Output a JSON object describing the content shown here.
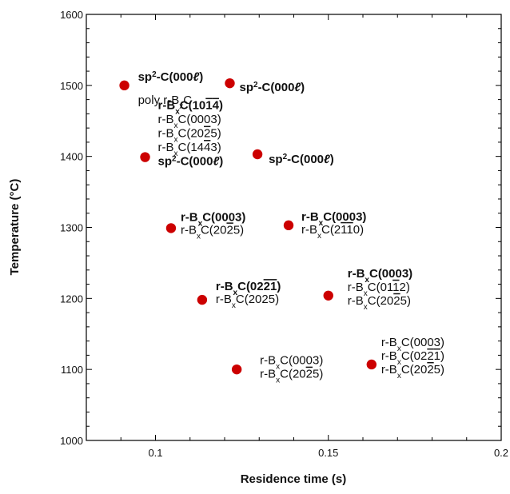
{
  "chart_data": {
    "type": "scatter",
    "xlabel": "Residence time (s)",
    "ylabel": "Temperature (°C)",
    "xlim": [
      0.08,
      0.2
    ],
    "ylim": [
      1000,
      1600
    ],
    "x_tick_labels": [
      {
        "value": 0.1,
        "label": "0.1"
      },
      {
        "value": 0.15,
        "label": "0.15"
      },
      {
        "value": 0.2,
        "label": "0.2"
      }
    ],
    "y_tick_labels": [
      {
        "value": 1000,
        "label": "1000"
      },
      {
        "value": 1100,
        "label": "1100"
      },
      {
        "value": 1200,
        "label": "1200"
      },
      {
        "value": 1300,
        "label": "1300"
      },
      {
        "value": 1400,
        "label": "1400"
      },
      {
        "value": 1500,
        "label": "1500"
      },
      {
        "value": 1600,
        "label": "1600"
      }
    ],
    "marker_color": "#cc0000",
    "points": [
      {
        "x": 0.091,
        "y": 1500,
        "labels": [
          {
            "html": "sp<tspan baseline-shift=\"super\" font-size=\"10\">2</tspan>-C(000<tspan font-style=\"italic\">ℓ</tspan>)",
            "bold": true
          },
          {
            "html": "poly r-B<tspan baseline-shift=\"sub\" font-size=\"10\">x</tspan>C",
            "bold": false
          }
        ]
      },
      {
        "x": 0.1215,
        "y": 1503,
        "labels": [
          {
            "html": "sp<tspan baseline-shift=\"super\" font-size=\"10\">2</tspan>-C(000<tspan font-style=\"italic\">ℓ</tspan>)",
            "bold": true
          }
        ]
      },
      {
        "x": 0.097,
        "y": 1399,
        "labels": [
          {
            "html": "r-B<tspan baseline-shift=\"sub\" font-size=\"10\">x</tspan>C(10<tspan text-decoration=\"overline\">1</tspan><tspan text-decoration=\"overline\">4</tspan>)",
            "bold": true
          },
          {
            "html": "r-B<tspan baseline-shift=\"sub\" font-size=\"10\">x</tspan>C(0003)",
            "bold": false
          },
          {
            "html": "r-B<tspan baseline-shift=\"sub\" font-size=\"10\">x</tspan>C(20<tspan text-decoration=\"overline\">2</tspan>5)",
            "bold": false
          },
          {
            "html": "r-B<tspan baseline-shift=\"sub\" font-size=\"10\">x</tspan>C(14<tspan text-decoration=\"overline\">4</tspan>3)",
            "bold": false
          },
          {
            "html": "sp<tspan baseline-shift=\"super\" font-size=\"10\">2</tspan>-C(000<tspan font-style=\"italic\">ℓ</tspan>)",
            "bold": true
          }
        ]
      },
      {
        "x": 0.1295,
        "y": 1403,
        "labels": [
          {
            "html": "sp<tspan baseline-shift=\"super\" font-size=\"10\">2</tspan>-C(000<tspan font-style=\"italic\">ℓ</tspan>)",
            "bold": true
          }
        ]
      },
      {
        "x": 0.1045,
        "y": 1299,
        "labels": [
          {
            "html": "r-B<tspan baseline-shift=\"sub\" font-size=\"10\">x</tspan>C(0003)",
            "bold": true
          },
          {
            "html": "r-B<tspan baseline-shift=\"sub\" font-size=\"10\">x</tspan>C(20<tspan text-decoration=\"overline\">2</tspan>5)",
            "bold": false
          }
        ]
      },
      {
        "x": 0.1385,
        "y": 1303,
        "labels": [
          {
            "html": "r-B<tspan baseline-shift=\"sub\" font-size=\"10\">x</tspan>C(0003)",
            "bold": true
          },
          {
            "html": "r-B<tspan baseline-shift=\"sub\" font-size=\"10\">x</tspan>C(2<tspan text-decoration=\"overline\">1</tspan><tspan text-decoration=\"overline\">1</tspan>0)",
            "bold": false
          }
        ]
      },
      {
        "x": 0.1135,
        "y": 1198,
        "labels": [
          {
            "html": "r-B<tspan baseline-shift=\"sub\" font-size=\"10\">x</tspan>C(02<tspan text-decoration=\"overline\">2</tspan><tspan text-decoration=\"overline\">1</tspan>)",
            "bold": true
          },
          {
            "html": "r-B<tspan baseline-shift=\"sub\" font-size=\"10\">x</tspan>C(2025)",
            "bold": false
          }
        ]
      },
      {
        "x": 0.15,
        "y": 1204,
        "labels": [
          {
            "html": "r-B<tspan baseline-shift=\"sub\" font-size=\"10\">x</tspan>C(0003)",
            "bold": true
          },
          {
            "html": "r-B<tspan baseline-shift=\"sub\" font-size=\"10\">x</tspan>C(01<tspan text-decoration=\"overline\">1</tspan>2)",
            "bold": false
          },
          {
            "html": "r-B<tspan baseline-shift=\"sub\" font-size=\"10\">x</tspan>C(20<tspan text-decoration=\"overline\">2</tspan>5)",
            "bold": false
          }
        ]
      },
      {
        "x": 0.1235,
        "y": 1100,
        "labels": [
          {
            "html": "r-B<tspan baseline-shift=\"sub\" font-size=\"10\">x</tspan>C(0003)",
            "bold": false
          },
          {
            "html": "r-B<tspan baseline-shift=\"sub\" font-size=\"10\">x</tspan>C(20<tspan text-decoration=\"overline\">2</tspan>5)",
            "bold": false
          }
        ]
      },
      {
        "x": 0.1625,
        "y": 1107,
        "labels": [
          {
            "html": "r-B<tspan baseline-shift=\"sub\" font-size=\"10\">x</tspan>C(0003)",
            "bold": false
          },
          {
            "html": "r-B<tspan baseline-shift=\"sub\" font-size=\"10\">x</tspan>C(02<tspan text-decoration=\"overline\">2</tspan><tspan text-decoration=\"overline\">1</tspan>)",
            "bold": false
          },
          {
            "html": "r-B<tspan baseline-shift=\"sub\" font-size=\"10\">x</tspan>C(20<tspan text-decoration=\"overline\">2</tspan>5)",
            "bold": false
          }
        ]
      }
    ]
  }
}
